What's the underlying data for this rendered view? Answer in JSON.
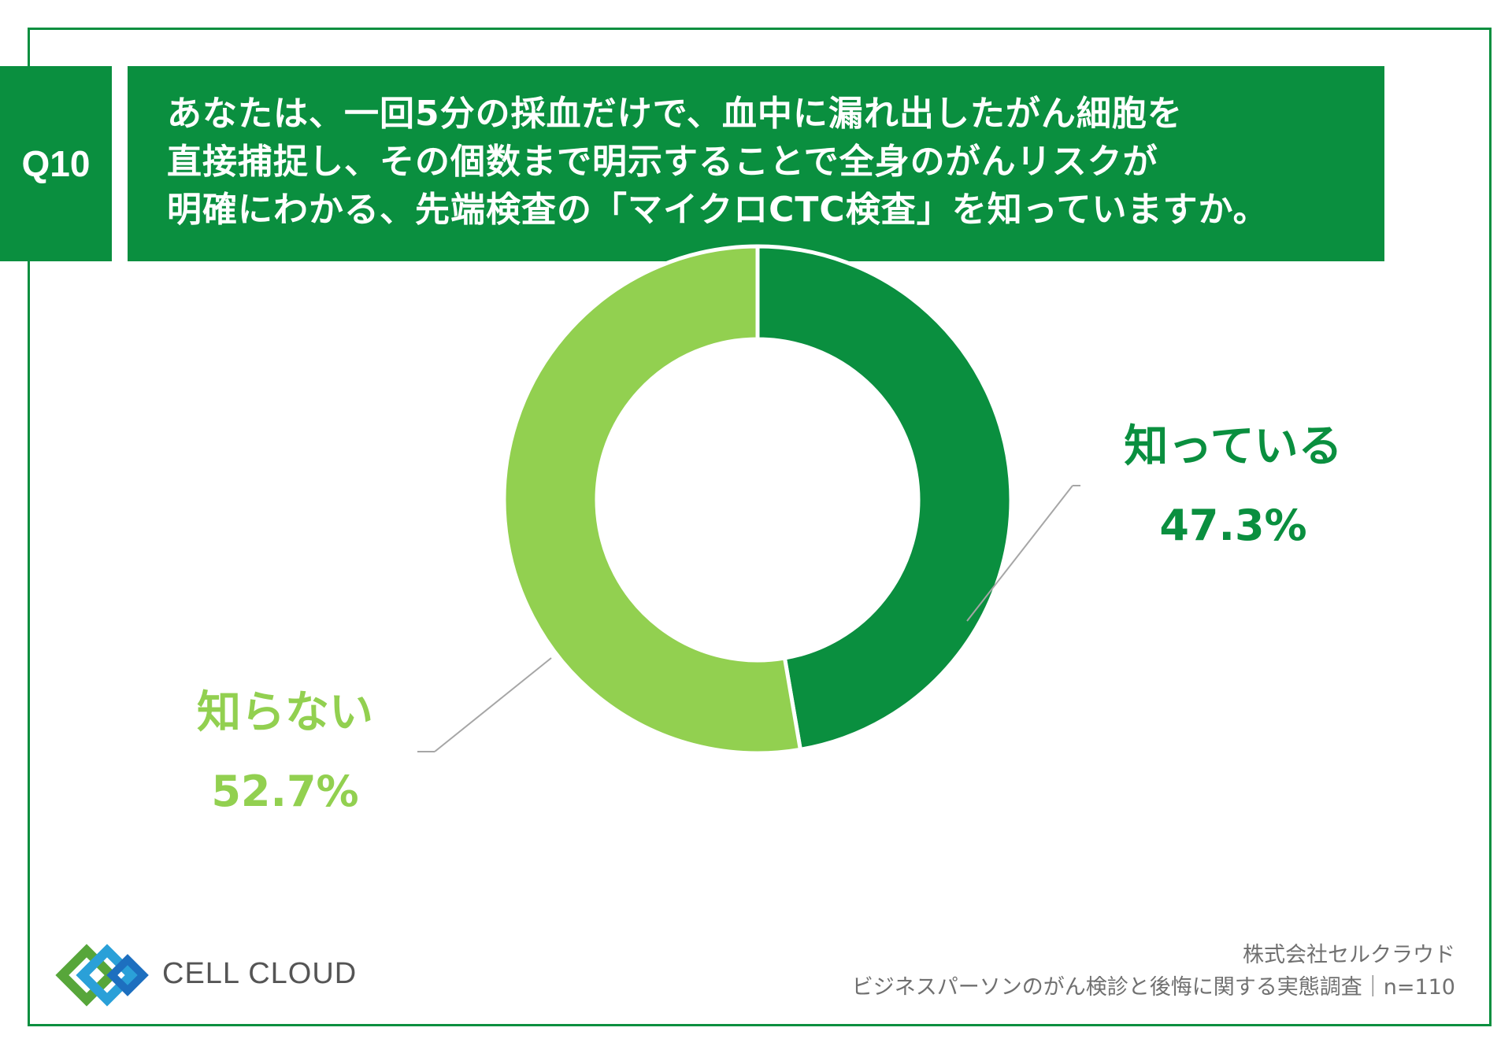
{
  "question": {
    "badge": "Q10",
    "lines": [
      "あなたは、一回5分の採血だけで、血中に漏れ出したがん細胞を",
      "直接捕捉し、その個数まで明示することで全身のがんリスクが",
      "明確にわかる、先端検査の「マイクロCTC検査」を知っていますか。"
    ]
  },
  "chart_data": {
    "type": "pie",
    "style": "donut",
    "start": "12 o'clock, clockwise",
    "slices": [
      {
        "label": "知っている",
        "value": 47.3,
        "display": "47.3%",
        "color": "#0a8f3f"
      },
      {
        "label": "知らない",
        "value": 52.7,
        "display": "52.7%",
        "color": "#92d050"
      }
    ]
  },
  "footer": {
    "company": "株式会社セルクラウド",
    "survey": "ビジネスパーソンのがん検診と後悔に関する実態調査｜n=110"
  },
  "logo": {
    "name": "CELL CLOUD"
  },
  "colors": {
    "primary": "#0a8f3f",
    "secondary": "#92d050",
    "border": "#0a8f3f"
  }
}
